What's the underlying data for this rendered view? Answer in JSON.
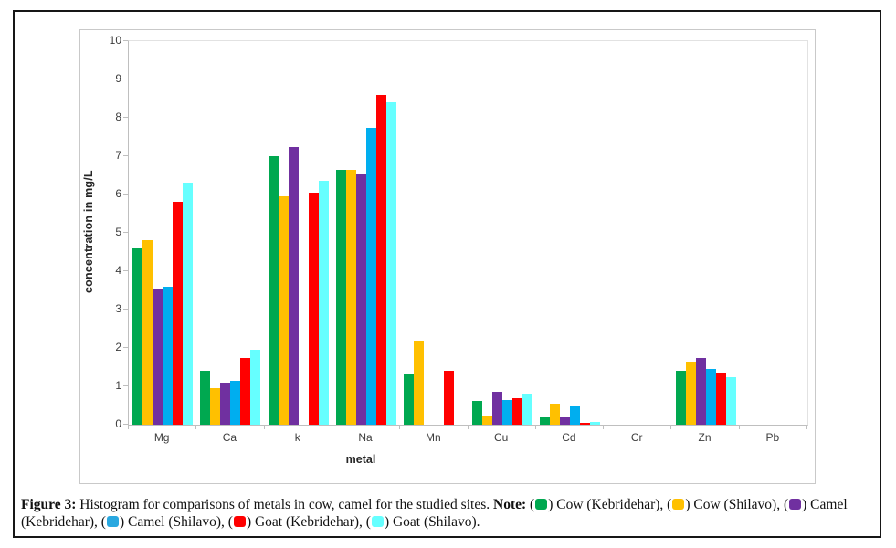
{
  "figure": {
    "caption_parts": [
      {
        "t": "Figure 3:",
        "bold": true
      },
      {
        "t": " Histogram for comparisons of metals in cow, camel for the studied sites. "
      },
      {
        "t": "Note:",
        "bold": true
      },
      {
        "t": " ("
      },
      {
        "swatch": "#00A850"
      },
      {
        "t": ") Cow (Kebridehar), ("
      },
      {
        "swatch": "#FFC000"
      },
      {
        "t": ") Cow (Shilavo), ("
      },
      {
        "swatch": "#7030A0"
      },
      {
        "t": ") Camel (Kebridehar), ("
      },
      {
        "swatch": "#29A8E0"
      },
      {
        "t": ") Camel (Shilavo), ("
      },
      {
        "swatch": "#FF0000"
      },
      {
        "t": ") Goat (Kebridehar), ("
      },
      {
        "swatch": "#66FFFF"
      },
      {
        "t": ") Goat (Shilavo)."
      }
    ]
  },
  "chart_data": {
    "type": "bar",
    "title": "",
    "xlabel": "metal",
    "ylabel": "concentration in mg/L",
    "ylim": [
      0,
      10
    ],
    "ytick_step": 1,
    "grid": false,
    "legend_position": "in-caption",
    "categories": [
      "Mg",
      "Ca",
      "k",
      "Na",
      "Mn",
      "Cu",
      "Cd",
      "Cr",
      "Zn",
      "Pb"
    ],
    "series": [
      {
        "name": "Cow (Kebridehar)",
        "color": "#00A850",
        "values": [
          4.6,
          1.4,
          7.0,
          6.65,
          1.3,
          0.62,
          0.2,
          0,
          1.4,
          0
        ]
      },
      {
        "name": "Cow (Shilavo)",
        "color": "#FFC000",
        "values": [
          4.8,
          0.95,
          5.95,
          6.65,
          2.2,
          0.25,
          0.55,
          0,
          1.65,
          0
        ]
      },
      {
        "name": "Camel (Kebridehar)",
        "color": "#7030A0",
        "values": [
          3.55,
          1.1,
          7.25,
          6.55,
          0,
          0.85,
          0.2,
          0,
          1.75,
          0
        ]
      },
      {
        "name": "Camel (Shilavo)",
        "color": "#00AEEF",
        "values": [
          3.6,
          1.15,
          0,
          7.75,
          0,
          0.65,
          0.5,
          0,
          1.45,
          0
        ]
      },
      {
        "name": "Goat (Kebridehar)",
        "color": "#FF0000",
        "values": [
          5.8,
          1.75,
          6.05,
          8.6,
          1.4,
          0.7,
          0.05,
          0,
          1.35,
          0
        ]
      },
      {
        "name": "Goat (Shilavo)",
        "color": "#66FFFF",
        "values": [
          6.3,
          1.95,
          6.35,
          8.4,
          0,
          0.8,
          0.08,
          0,
          1.25,
          0
        ]
      }
    ]
  }
}
